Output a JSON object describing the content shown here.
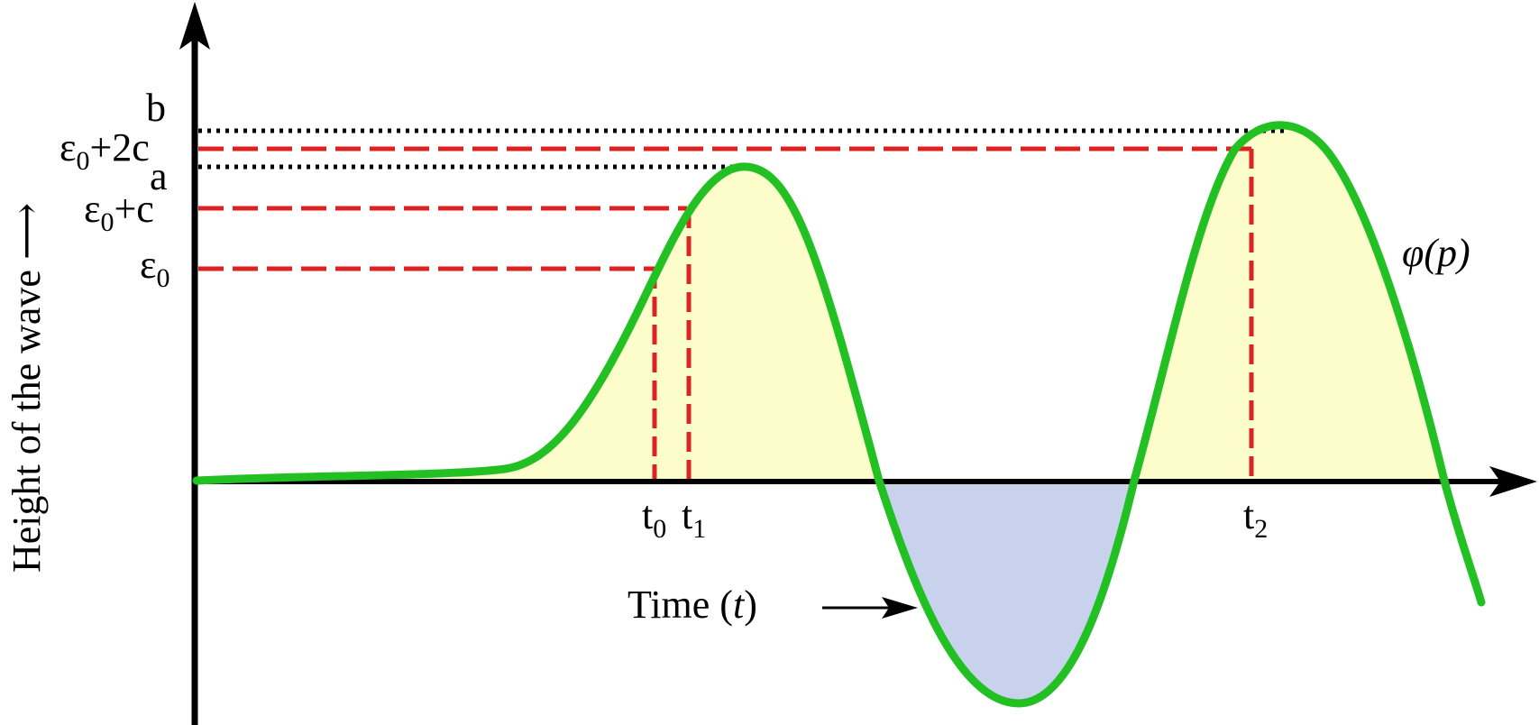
{
  "diagram": {
    "y_axis_label": "Height of the wave ⟶",
    "x_axis_label_prefix": "Time (",
    "x_axis_label_var": "t",
    "x_axis_label_suffix": ")",
    "curve_label": "φ(p)",
    "levels": {
      "b": "b",
      "eps0_2c": {
        "base": "ε",
        "sub": "0",
        "rest": "+2c"
      },
      "a": "a",
      "eps0_c": {
        "base": "ε",
        "sub": "0",
        "rest": "+c"
      },
      "eps0": {
        "base": "ε",
        "sub": "0"
      }
    },
    "ticks": {
      "t0": {
        "base": "t",
        "sub": "0"
      },
      "t1": {
        "base": "t",
        "sub": "1"
      },
      "t2": {
        "base": "t",
        "sub": "2"
      }
    },
    "colors": {
      "curve": "#22c022",
      "positive_fill": "#fdfdcc",
      "negative_fill": "#c8d2ec",
      "dashed_guides": "#dd2222",
      "dotted_guides": "#000000",
      "axes": "#000000"
    }
  }
}
